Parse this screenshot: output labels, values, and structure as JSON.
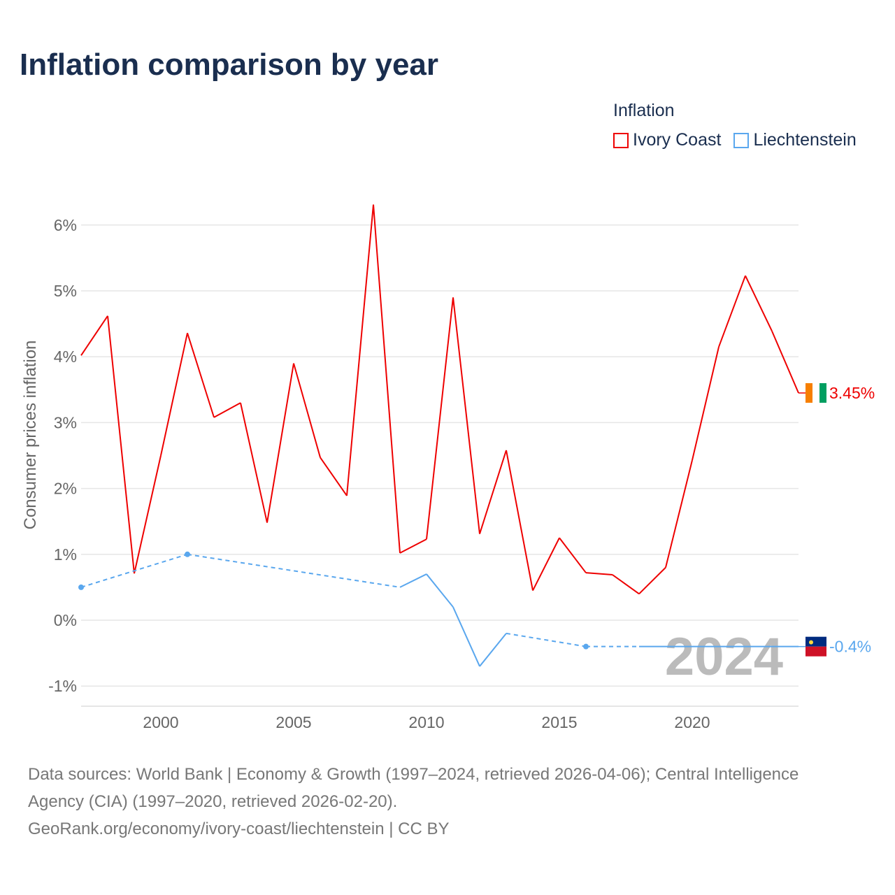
{
  "title": "Inflation comparison by year",
  "legend_title": "Inflation",
  "year_watermark": "2024",
  "sources": {
    "line1": "Data sources: World Bank | Economy & Growth (1997–2024, retrieved 2026-04-06); Central Intelligence",
    "line2": "Agency (CIA) (1997–2020, retrieved 2026-02-20).",
    "line3": "GeoRank.org/economy/ivory-coast/liechtenstein | CC BY"
  },
  "chart_data": {
    "type": "line",
    "title": "Inflation comparison by year",
    "ylabel": "Consumer prices inflation",
    "xlabel": "",
    "xlim": [
      1997,
      2024
    ],
    "ylim": [
      -1.3,
      6.5
    ],
    "xticks": [
      2000,
      2005,
      2010,
      2015,
      2020
    ],
    "xtick_labels": [
      "2000",
      "2005",
      "2010",
      "2015",
      "2020"
    ],
    "yticks": [
      -1,
      0,
      1,
      2,
      3,
      4,
      5,
      6
    ],
    "ytick_labels": [
      "-1%",
      "0%",
      "1%",
      "2%",
      "3%",
      "4%",
      "5%",
      "6%"
    ],
    "grid": true,
    "legend_position": "top-right",
    "series": [
      {
        "name": "Ivory Coast",
        "color": "#ee0000",
        "end_label": "3.45%",
        "x": [
          1997,
          1998,
          1999,
          2000,
          2001,
          2002,
          2003,
          2004,
          2005,
          2006,
          2007,
          2008,
          2009,
          2010,
          2011,
          2012,
          2013,
          2014,
          2015,
          2016,
          2017,
          2018,
          2019,
          2020,
          2021,
          2022,
          2023,
          2024
        ],
        "y": [
          4.02,
          4.62,
          0.71,
          2.5,
          4.36,
          3.08,
          3.3,
          1.48,
          3.9,
          2.47,
          1.89,
          6.31,
          1.02,
          1.23,
          4.9,
          1.31,
          2.58,
          0.45,
          1.25,
          0.72,
          0.69,
          0.4,
          0.8,
          2.43,
          4.15,
          5.23,
          4.39,
          3.45
        ]
      },
      {
        "name": "Liechtenstein",
        "color": "#5aa7ee",
        "end_label": "-0.4%",
        "x": [
          1997,
          2001,
          2009,
          2010,
          2011,
          2012,
          2013,
          2016,
          2018,
          2019,
          2020,
          2021,
          2022,
          2023,
          2024
        ],
        "y": [
          0.5,
          1.0,
          0.5,
          0.7,
          0.2,
          -0.7,
          -0.2,
          -0.4,
          -0.4,
          -0.4,
          -0.4,
          -0.4,
          -0.4,
          -0.4,
          -0.4
        ]
      }
    ]
  }
}
